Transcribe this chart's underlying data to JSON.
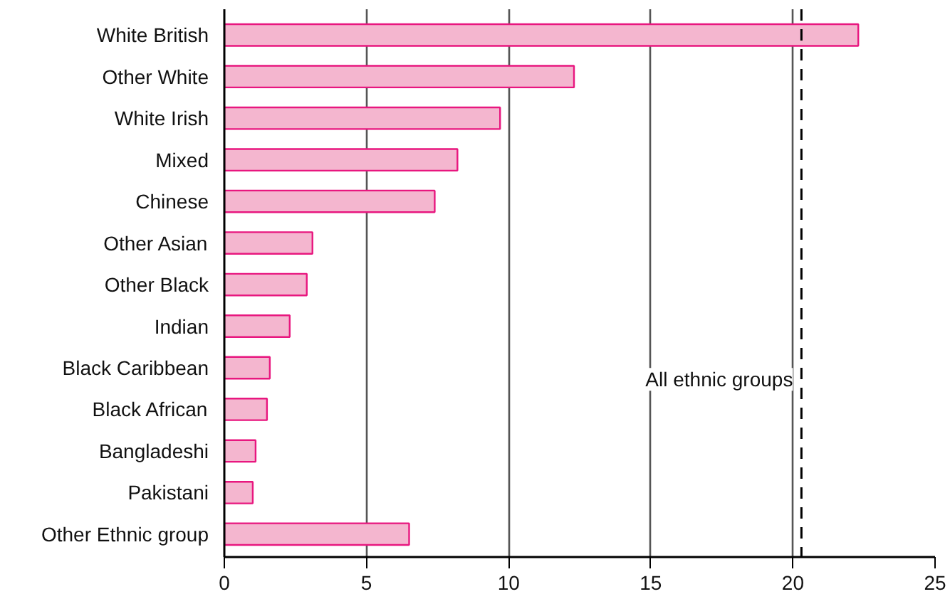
{
  "chart_data": {
    "type": "bar",
    "orientation": "horizontal",
    "categories": [
      "White British",
      "Other White",
      "White Irish",
      "Mixed",
      "Chinese",
      "Other Asian",
      "Other Black",
      "Indian",
      "Black Caribbean",
      "Black African",
      "Bangladeshi",
      "Pakistani",
      "Other Ethnic group"
    ],
    "values": [
      22.3,
      12.3,
      9.7,
      8.2,
      7.4,
      3.1,
      2.9,
      2.3,
      1.6,
      1.5,
      1.1,
      1.0,
      6.5
    ],
    "color": "#f4b6cf",
    "xlim": [
      0,
      25
    ],
    "xticks": [
      0,
      5,
      10,
      15,
      20,
      25
    ],
    "grid": "x",
    "ref_lines": [
      {
        "axis": "x",
        "value": 20.3,
        "label": "All ethnic groups",
        "line_style": "dashed",
        "color": "#000000"
      }
    ]
  }
}
